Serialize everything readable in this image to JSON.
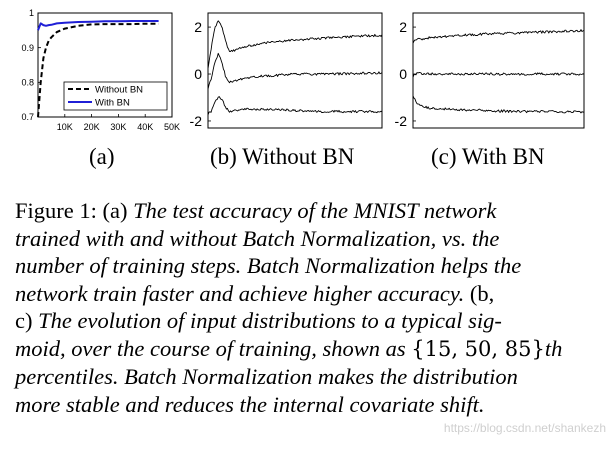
{
  "chart_data": [
    {
      "id": "a",
      "type": "line",
      "sublabel": "(a)",
      "x": [
        0,
        1000,
        2000,
        3000,
        4000,
        5000,
        7000,
        10000,
        15000,
        20000,
        25000,
        30000,
        35000,
        40000,
        45000
      ],
      "series": [
        {
          "name": "Without BN",
          "style": "dashed",
          "color": "#000000",
          "values": [
            0.7,
            0.8,
            0.87,
            0.9,
            0.92,
            0.93,
            0.945,
            0.955,
            0.963,
            0.967,
            0.968,
            0.968,
            0.968,
            0.969,
            0.969
          ]
        },
        {
          "name": "With BN",
          "style": "solid",
          "color": "#1f1fd6",
          "values": [
            0.95,
            0.97,
            0.965,
            0.963,
            0.965,
            0.966,
            0.97,
            0.972,
            0.974,
            0.975,
            0.976,
            0.976,
            0.977,
            0.977,
            0.977
          ]
        }
      ],
      "xlim": [
        0,
        50000
      ],
      "ylim": [
        0.7,
        1.0
      ],
      "xticks": [
        "10K",
        "20K",
        "30K",
        "40K",
        "50K"
      ],
      "xtick_values": [
        10000,
        20000,
        30000,
        40000,
        50000
      ],
      "yticks": [
        "0.7",
        "0.8",
        "0.9",
        "1"
      ],
      "ytick_values": [
        0.7,
        0.8,
        0.9,
        1.0
      ],
      "legend": "lower-right"
    },
    {
      "id": "b",
      "type": "line",
      "sublabel": "(b) Without BN",
      "x": [
        0,
        2,
        4,
        6,
        8,
        10,
        12,
        15,
        20,
        30,
        50,
        70,
        100
      ],
      "series": [
        {
          "values": [
            0.2,
            1.2,
            2.0,
            2.3,
            2.0,
            1.4,
            1.0,
            1.0,
            1.15,
            1.3,
            1.45,
            1.55,
            1.65
          ]
        },
        {
          "values": [
            -0.6,
            -0.2,
            0.5,
            0.9,
            0.5,
            -0.1,
            -0.35,
            -0.3,
            -0.2,
            -0.1,
            0.0,
            0.0,
            0.05
          ]
        },
        {
          "values": [
            -1.7,
            -1.6,
            -1.2,
            -0.95,
            -1.1,
            -1.4,
            -1.6,
            -1.55,
            -1.5,
            -1.5,
            -1.55,
            -1.6,
            -1.6
          ]
        }
      ],
      "xlim": [
        0,
        100
      ],
      "ylim": [
        -2.3,
        2.6
      ],
      "yticks": [
        "-2",
        "0",
        "2"
      ],
      "ytick_values": [
        -2,
        0,
        2
      ]
    },
    {
      "id": "c",
      "type": "line",
      "sublabel": "(c) With BN",
      "x": [
        0,
        2,
        4,
        6,
        10,
        20,
        40,
        60,
        80,
        100
      ],
      "series": [
        {
          "values": [
            1.35,
            1.45,
            1.5,
            1.5,
            1.55,
            1.6,
            1.7,
            1.75,
            1.8,
            1.85
          ]
        },
        {
          "values": [
            -0.1,
            0.0,
            0.05,
            0.0,
            0.0,
            0.0,
            0.0,
            0.0,
            0.0,
            0.0
          ]
        },
        {
          "values": [
            -0.9,
            -1.2,
            -1.35,
            -1.4,
            -1.45,
            -1.5,
            -1.55,
            -1.6,
            -1.6,
            -1.62
          ]
        }
      ],
      "xlim": [
        0,
        100
      ],
      "ylim": [
        -2.3,
        2.6
      ],
      "yticks": [
        "2",
        "0",
        "-2"
      ],
      "ytick_values": [
        2,
        0,
        -2
      ]
    }
  ],
  "caption": {
    "lines": [
      [
        {
          "t": "Figure 1:  (a) ",
          "s": "n"
        },
        {
          "t": "The test accuracy of the MNIST network",
          "s": "i"
        }
      ],
      [
        {
          "t": "trained with and without Batch Normalization, vs.  the",
          "s": "i"
        }
      ],
      [
        {
          "t": "number of training steps. Batch Normalization helps the",
          "s": "i"
        }
      ],
      [
        {
          "t": "network train faster and achieve higher accuracy.",
          "s": "i"
        },
        {
          "t": "  (b,",
          "s": "n"
        }
      ],
      [
        {
          "t": "c) ",
          "s": "n"
        },
        {
          "t": "The evolution of input distributions to a typical sig-",
          "s": "i"
        }
      ],
      [
        {
          "t": "moid, over the course of training, shown as ",
          "s": "i"
        },
        {
          "t": "{15, 50, 85}",
          "s": "m"
        },
        {
          "t": "th",
          "s": "i"
        }
      ],
      [
        {
          "t": "percentiles.  Batch Normalization makes the distribution",
          "s": "i"
        }
      ],
      [
        {
          "t": "more stable and reduces the internal covariate shift.",
          "s": "i"
        }
      ]
    ]
  },
  "watermark": "https://blog.csdn.net/shankezh"
}
